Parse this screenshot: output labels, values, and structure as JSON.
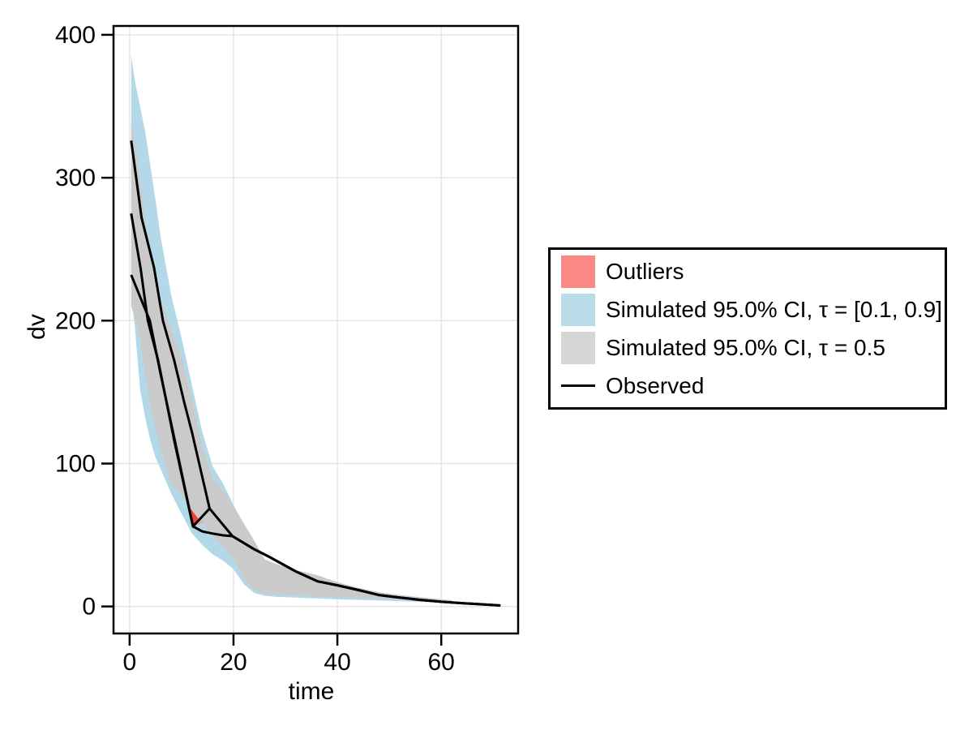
{
  "figure": {
    "background": "#ffffff"
  },
  "chart_data": {
    "type": "area",
    "subtype": "vpc-confidence-bands-with-observed-lines",
    "title": "",
    "xlabel": "time",
    "ylabel": "dv",
    "x_ticks": [
      0,
      20,
      40,
      60
    ],
    "y_ticks": [
      0,
      100,
      200,
      300,
      400
    ],
    "xlim": [
      -3.1,
      74.8
    ],
    "ylim": [
      -18.9,
      406.2
    ],
    "grid": true,
    "legend_position": "right-outside",
    "colors": {
      "blue_band": "#B3D9E8",
      "gray_band": "#CACACA",
      "outlier_bright": "#ED4037",
      "outlier_pale": "#F7A39E",
      "observed": "#000000",
      "gridline": "#E5E5E5",
      "frame": "#000000"
    },
    "bands": [
      {
        "name": "Simulated 95.0% CI, τ = [0.1, 0.9]",
        "color_key": "blue_band",
        "t": [
          0.3,
          1,
          2,
          3,
          4,
          5,
          6,
          8,
          10,
          12,
          14,
          16,
          18,
          20,
          22,
          24,
          26,
          28,
          32,
          36,
          40,
          44,
          48,
          52,
          56,
          60,
          62
        ],
        "upper": [
          386,
          368,
          350,
          332,
          308,
          284,
          258,
          218,
          188,
          155,
          122,
          98,
          86,
          71,
          57.5,
          45.5,
          32.5,
          29.5,
          24.5,
          21,
          16,
          12,
          9,
          7,
          5.5,
          4.2,
          3.8
        ],
        "lower": [
          218,
          196,
          152,
          132,
          116,
          104,
          96,
          79,
          65,
          51,
          43,
          36.5,
          32,
          26,
          15.5,
          9.5,
          7.5,
          6.8,
          6.2,
          5.6,
          5,
          4.6,
          4.2,
          3.7,
          3.2,
          2.7,
          2.6
        ]
      },
      {
        "name": "Simulated 95.0% CI, τ = 0.5",
        "color_key": "gray_band",
        "t": [
          0.3,
          1,
          2,
          3,
          4,
          5,
          6,
          8,
          10,
          12,
          14,
          16,
          18,
          20,
          22,
          24,
          26,
          28,
          32,
          36,
          40,
          44,
          48,
          52,
          56,
          60,
          62
        ],
        "upper": [
          340,
          324,
          298,
          270,
          246,
          230,
          215,
          195,
          174,
          146,
          112,
          90,
          81,
          70,
          58,
          46,
          33,
          30,
          25.5,
          22,
          17,
          13,
          10,
          8,
          6.5,
          5,
          4.4
        ],
        "lower": [
          210,
          202,
          188,
          162,
          140,
          124,
          110,
          86,
          78,
          67,
          58,
          49,
          42.5,
          34,
          19,
          11.5,
          9,
          8.2,
          7.6,
          7,
          6.5,
          6,
          5.5,
          5,
          4.5,
          3.9,
          3.8
        ]
      }
    ],
    "outlier_patches": [
      {
        "name": "outlier-region-bright",
        "color_key": "outlier_bright",
        "points": [
          [
            11.4,
            70
          ],
          [
            12.2,
            56
          ],
          [
            13.2,
            61.5
          ]
        ]
      },
      {
        "name": "outlier-region-pale",
        "color_key": "outlier_pale",
        "points": [
          [
            13.2,
            61.5
          ],
          [
            12.2,
            56
          ],
          [
            14.2,
            58.5
          ]
        ]
      }
    ],
    "observed_lines": [
      {
        "name": "observed-upper",
        "points": [
          [
            0.3,
            326
          ],
          [
            2.3,
            272
          ],
          [
            4.7,
            237
          ],
          [
            6.4,
            200
          ],
          [
            8.6,
            172
          ],
          [
            10.5,
            143
          ],
          [
            12,
            122
          ],
          [
            15.4,
            68.5
          ],
          [
            19.8,
            49.2
          ],
          [
            24,
            40
          ],
          [
            27,
            34.5
          ],
          [
            32,
            24.5
          ],
          [
            36.2,
            17.6
          ],
          [
            40,
            14.8
          ],
          [
            44,
            11.5
          ],
          [
            48,
            8
          ],
          [
            52,
            6.2
          ],
          [
            56,
            4.6
          ],
          [
            60,
            3.3
          ],
          [
            64,
            2.3
          ],
          [
            68,
            1.5
          ],
          [
            71.4,
            0.7
          ]
        ]
      },
      {
        "name": "observed-median",
        "points": [
          [
            0.3,
            275
          ],
          [
            2.1,
            237
          ],
          [
            3.5,
            200
          ],
          [
            5.5,
            172
          ],
          [
            8.6,
            116
          ],
          [
            12.2,
            56
          ],
          [
            14,
            52.5
          ],
          [
            16,
            51
          ],
          [
            18,
            49.8
          ],
          [
            19.8,
            49.2
          ],
          [
            24,
            40
          ],
          [
            27,
            34.5
          ],
          [
            32,
            24.5
          ],
          [
            36.2,
            17.6
          ],
          [
            40,
            14.8
          ],
          [
            44,
            11.5
          ],
          [
            48,
            8
          ],
          [
            52,
            6.2
          ],
          [
            56,
            4.6
          ],
          [
            60,
            3.3
          ],
          [
            64,
            2.3
          ],
          [
            68,
            1.5
          ],
          [
            71.4,
            0.7
          ]
        ]
      },
      {
        "name": "observed-lower",
        "points": [
          [
            0.3,
            232
          ],
          [
            3.9,
            200
          ],
          [
            6,
            162
          ],
          [
            8.6,
            118
          ],
          [
            12.2,
            56
          ],
          [
            15.4,
            68.5
          ]
        ]
      }
    ]
  },
  "legend": {
    "entries": [
      {
        "label": "Outliers",
        "swatch": "fill",
        "color": "#FB8983"
      },
      {
        "label": "Simulated 95.0% CI, τ = [0.1, 0.9]",
        "swatch": "fill",
        "color": "#B9DCE9"
      },
      {
        "label": "Simulated 95.0% CI, τ = 0.5",
        "swatch": "fill",
        "color": "#D6D6D6"
      },
      {
        "label": "Observed",
        "swatch": "line",
        "color": "#000000"
      }
    ]
  }
}
